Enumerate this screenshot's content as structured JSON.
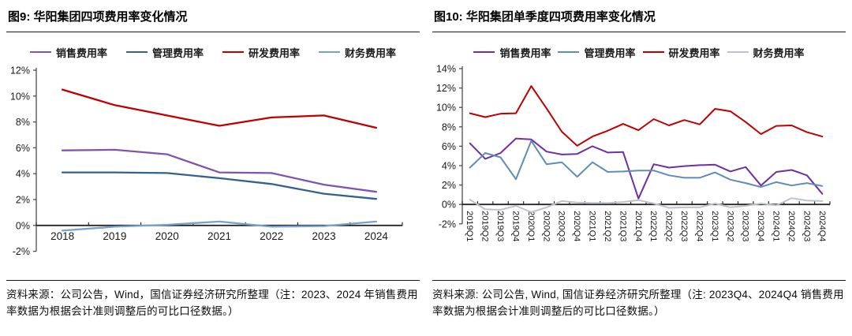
{
  "figures": [
    {
      "label_title": "图9: 华阳集团四项费用率变化情况",
      "source_note": "资料来源：公司公告，Wind，国信证券经济研究所整理（注：2023、2024 年销售费用率数据为根据会计准则调整后的可比口径数据。）"
    },
    {
      "label_title": "图10: 华阳集团单季度四项费用率变化情况",
      "source_note": "资料来源: 公司公告, Wind, 国信证券经济研究所整理（注: 2023Q4、2024Q4 销售费用率数据为根据会计准则调整后的可比口径数据。）"
    }
  ],
  "chart_data": [
    {
      "id": "annual",
      "type": "line",
      "title": "图9: 华阳集团四项费用率变化情况",
      "categories": [
        "2018",
        "2019",
        "2020",
        "2021",
        "2022",
        "2023",
        "2024"
      ],
      "series": [
        {
          "key": "sales",
          "name": "销售费用率",
          "color": "#7D55B2",
          "values": [
            5.8,
            5.85,
            5.5,
            4.1,
            4.05,
            3.15,
            2.6
          ]
        },
        {
          "key": "admin",
          "name": "管理费用率",
          "color": "#36618F",
          "values": [
            4.1,
            4.1,
            4.05,
            3.65,
            3.2,
            2.45,
            2.05
          ]
        },
        {
          "key": "rd",
          "name": "研发费用率",
          "color": "#C00000",
          "values": [
            10.5,
            9.3,
            8.5,
            7.7,
            8.35,
            8.5,
            7.55
          ]
        },
        {
          "key": "finance",
          "name": "财务费用率",
          "color": "#74A3CD",
          "values": [
            -0.4,
            -0.1,
            0.05,
            0.3,
            -0.1,
            -0.05,
            0.3
          ]
        }
      ],
      "ylim": [
        -2,
        12
      ],
      "y_tick_step": 2,
      "y_tick_suffix": "%",
      "grid": false,
      "legend_position": "top",
      "x_label_rotation": 0
    },
    {
      "id": "quarterly",
      "type": "line",
      "title": "图10: 华阳集团单季度四项费用率变化情况",
      "categories": [
        "2019Q1",
        "2019Q2",
        "2019Q3",
        "2019Q4",
        "2020Q1",
        "2020Q2",
        "2020Q3",
        "2020Q4",
        "2021Q1",
        "2021Q2",
        "2021Q3",
        "2021Q4",
        "2022Q1",
        "2022Q2",
        "2022Q3",
        "2022Q4",
        "2023Q1",
        "2023Q2",
        "2023Q3",
        "2023Q4",
        "2024Q1",
        "2024Q2",
        "2024Q3",
        "2024Q4"
      ],
      "series": [
        {
          "key": "sales",
          "name": "销售费用率",
          "color": "#7030A0",
          "values": [
            6.3,
            4.7,
            5.3,
            6.8,
            6.7,
            5.45,
            5.15,
            5.2,
            6.0,
            5.35,
            5.4,
            0.6,
            4.15,
            3.8,
            3.95,
            4.05,
            4.1,
            3.4,
            3.85,
            1.95,
            3.35,
            3.55,
            3.0,
            1.1
          ]
        },
        {
          "key": "admin",
          "name": "管理费用率",
          "color": "#5E8DB8",
          "values": [
            3.8,
            5.3,
            4.85,
            2.6,
            6.55,
            4.15,
            4.35,
            2.85,
            4.35,
            3.35,
            3.4,
            3.5,
            3.5,
            3.0,
            2.75,
            2.75,
            3.3,
            2.55,
            2.2,
            1.8,
            2.3,
            1.95,
            2.2,
            1.9
          ]
        },
        {
          "key": "rd",
          "name": "研发费用率",
          "color": "#C00000",
          "values": [
            9.4,
            9.0,
            9.35,
            9.4,
            12.2,
            9.9,
            7.5,
            6.05,
            7.0,
            7.6,
            8.3,
            7.65,
            8.8,
            8.15,
            8.7,
            8.25,
            9.85,
            9.6,
            8.5,
            7.25,
            8.1,
            8.15,
            7.45,
            7.0
          ]
        },
        {
          "key": "finance",
          "name": "财务费用率",
          "color": "#BDC3C9",
          "values": [
            0.5,
            -0.5,
            -0.55,
            -0.15,
            -0.8,
            -0.3,
            0.35,
            0.2,
            0.15,
            0.15,
            0.25,
            0.45,
            0.1,
            -0.35,
            -0.3,
            -0.3,
            0.1,
            -0.3,
            -0.15,
            0.1,
            -0.1,
            0.65,
            0.4,
            0.35
          ]
        }
      ],
      "ylim": [
        -2,
        14
      ],
      "y_tick_step": 2,
      "y_tick_suffix": "%",
      "grid": false,
      "legend_position": "top",
      "x_label_rotation": 90
    }
  ]
}
